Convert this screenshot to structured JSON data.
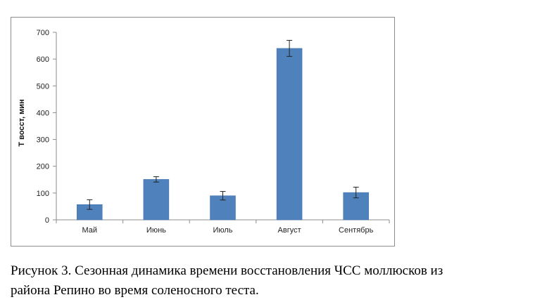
{
  "chart_data": {
    "type": "bar",
    "categories": [
      "Май",
      "Июнь",
      "Июль",
      "Август",
      "Сентябрь"
    ],
    "values": [
      57,
      151,
      90,
      640,
      102
    ],
    "errors": [
      18,
      10,
      16,
      30,
      20
    ],
    "ylabel": "T восст, мин",
    "xlabel": "",
    "ylim": [
      0,
      700
    ],
    "yticks": [
      0,
      100,
      200,
      300,
      400,
      500,
      600,
      700
    ],
    "grid": false,
    "bar_color": "#4f81bd",
    "legend": "none"
  },
  "caption": {
    "line1": "Рисунок 3. Сезонная динамика времени восстановления ЧСС моллюсков из",
    "line2": "района Репино во время соленосного теста."
  }
}
